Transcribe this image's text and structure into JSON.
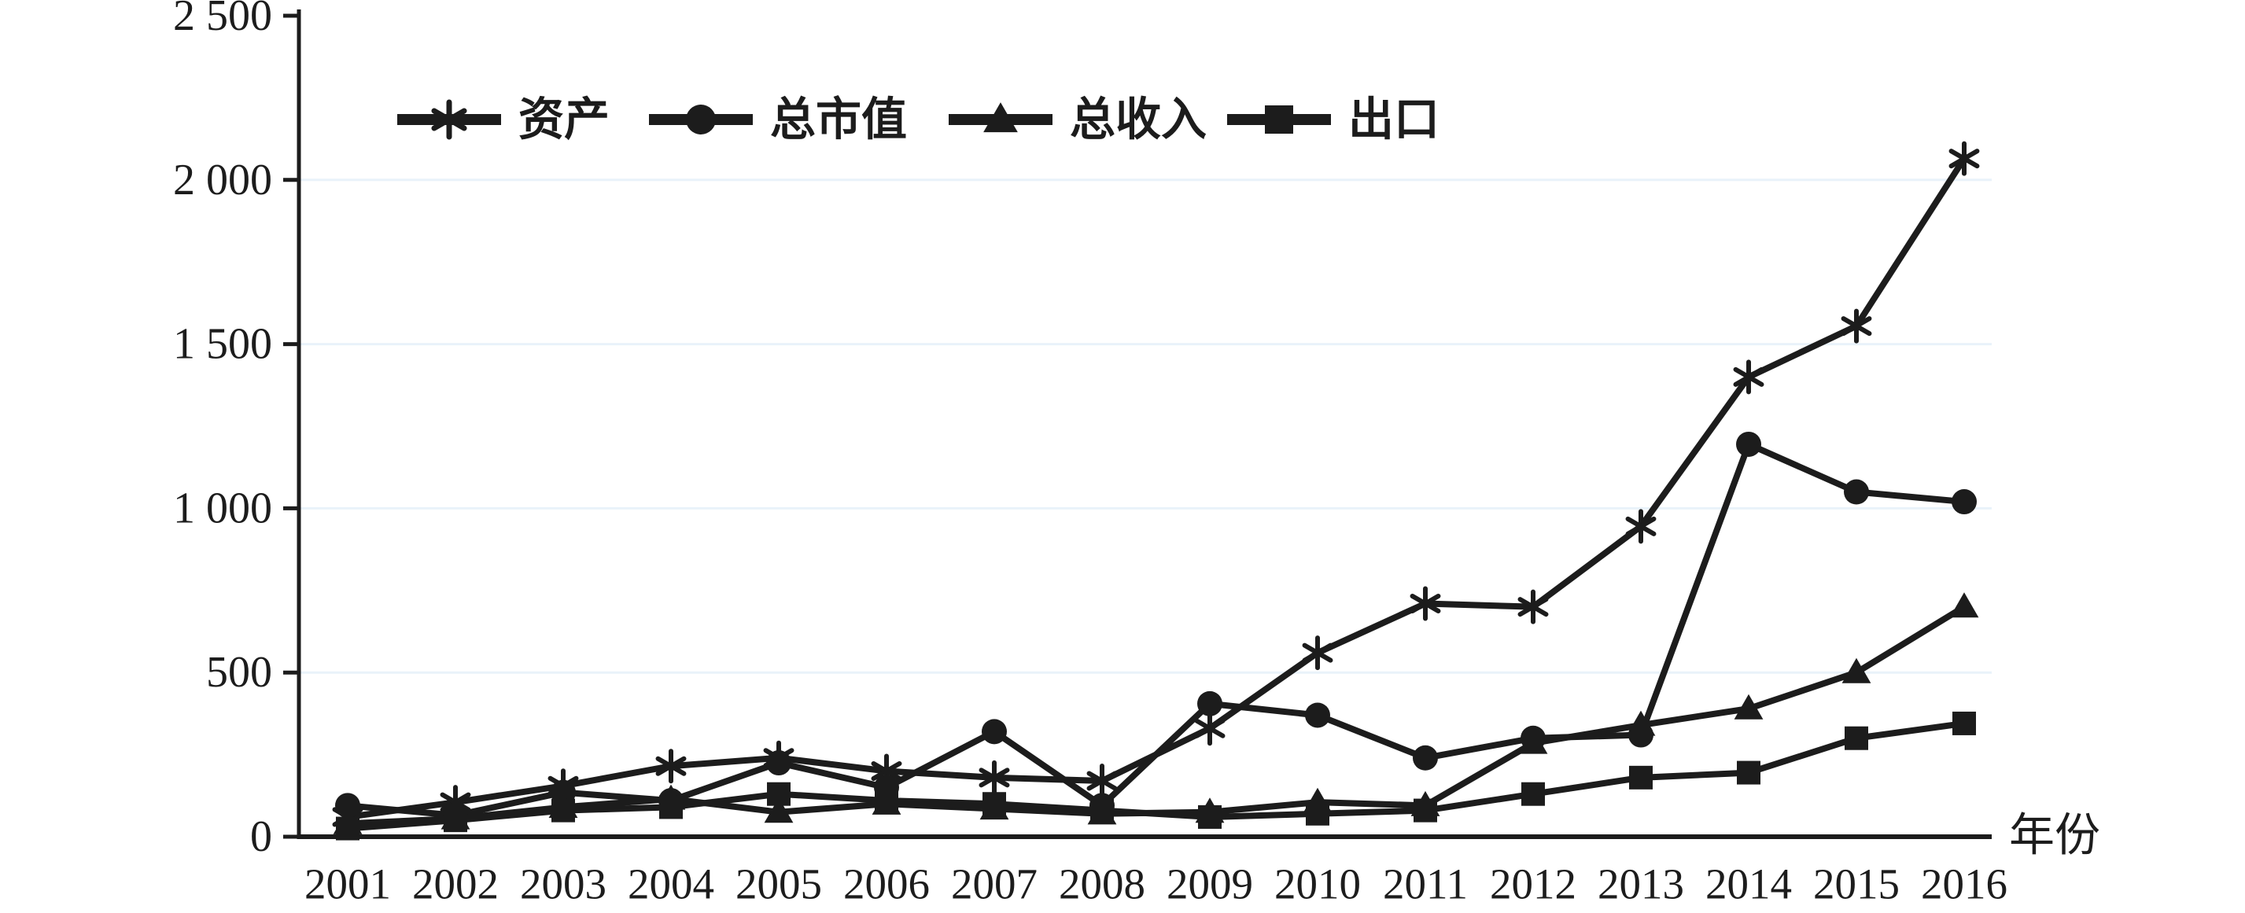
{
  "figure": {
    "xlabel": "年份"
  },
  "chart_data": {
    "type": "line",
    "title": "",
    "xlabel": "年份",
    "ylabel": "",
    "categories": [
      "2001",
      "2002",
      "2003",
      "2004",
      "2005",
      "2006",
      "2007",
      "2008",
      "2009",
      "2010",
      "2011",
      "2012",
      "2013",
      "2014",
      "2015",
      "2016"
    ],
    "series": [
      {
        "key": "assets",
        "name": "资产",
        "marker": "asterisk",
        "values": [
          60,
          105,
          155,
          215,
          240,
          200,
          180,
          170,
          330,
          560,
          710,
          700,
          945,
          1400,
          1555,
          2065
        ]
      },
      {
        "key": "market-cap",
        "name": "总市值",
        "marker": "circle",
        "values": [
          95,
          65,
          135,
          110,
          225,
          150,
          320,
          95,
          405,
          370,
          240,
          300,
          310,
          1195,
          1050,
          1020
        ]
      },
      {
        "key": "revenue",
        "name": "总收入",
        "marker": "triangle",
        "values": [
          40,
          55,
          90,
          115,
          75,
          100,
          85,
          70,
          75,
          105,
          95,
          285,
          340,
          390,
          500,
          700
        ]
      },
      {
        "key": "exports",
        "name": "出口",
        "marker": "square",
        "values": [
          25,
          50,
          80,
          90,
          130,
          110,
          100,
          80,
          60,
          70,
          80,
          130,
          180,
          195,
          300,
          345
        ]
      }
    ],
    "ylim": [
      0,
      2500
    ],
    "yticks": {
      "values": [
        0,
        500,
        1000,
        1500,
        2000,
        2500
      ],
      "labels": [
        "0",
        "500",
        "1 000",
        "1 500",
        "2 000",
        "2 500"
      ]
    },
    "grid": "horizontal-light",
    "legend_position": "top-inside",
    "colors": {
      "line": "#1c1c1c",
      "grid": "#e9f2fa",
      "background": "#ffffff"
    }
  }
}
